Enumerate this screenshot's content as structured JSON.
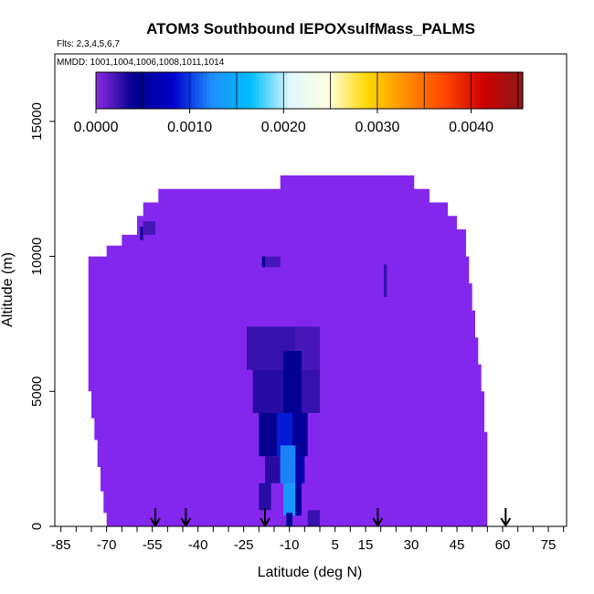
{
  "chart_data": {
    "type": "heatmap",
    "title": "ATOM3 Southbound IEPOXsulfMass_PALMS",
    "subtitle_flights": "Flts: 2,3,4,5,6,7",
    "subtitle_dates": "MMDD: 1001,1004,1006,1008,1011,1014",
    "xlabel": "Latitude (deg N)",
    "ylabel": "Altitude (m)",
    "xlim": [
      -87,
      81
    ],
    "ylim": [
      0,
      17500
    ],
    "x_tick_labels": [
      "-85",
      "-70",
      "-55",
      "-40",
      "-25",
      "-10",
      "5",
      "15",
      "30",
      "45",
      "60",
      "75"
    ],
    "y_tick_labels": [
      "0",
      "5000",
      "10000",
      "15000"
    ],
    "colorbar": {
      "range": [
        0,
        0.00455
      ],
      "tick_labels": [
        "0.0000",
        "0.0010",
        "0.0020",
        "0.0030",
        "0.0040"
      ],
      "colors": [
        "#8A2BE2",
        "#00008B",
        "#0000CD",
        "#1E90FF",
        "#00BFFF",
        "#E0F8FF",
        "#FFFFE0",
        "#FFD700",
        "#FF8C00",
        "#FF4500",
        "#CC0000",
        "#8B1A1A"
      ]
    },
    "background_value": 0.0001,
    "background_color": "#8427EE",
    "envelope": [
      [
        -70,
        0
      ],
      [
        -70,
        500
      ],
      [
        -71,
        500
      ],
      [
        -71,
        1300
      ],
      [
        -72,
        1300
      ],
      [
        -72,
        2200
      ],
      [
        -73,
        2200
      ],
      [
        -73,
        3200
      ],
      [
        -74,
        3200
      ],
      [
        -74,
        4000
      ],
      [
        -75,
        4000
      ],
      [
        -75,
        5000
      ],
      [
        -76,
        5000
      ],
      [
        -76,
        10000
      ],
      [
        -70,
        10000
      ],
      [
        -70,
        10400
      ],
      [
        -65,
        10400
      ],
      [
        -65,
        10800
      ],
      [
        -60,
        10800
      ],
      [
        -60,
        11500
      ],
      [
        -58,
        11500
      ],
      [
        -58,
        12000
      ],
      [
        -53,
        12000
      ],
      [
        -53,
        12500
      ],
      [
        -13,
        12500
      ],
      [
        -13,
        13000
      ],
      [
        31,
        13000
      ],
      [
        31,
        12500
      ],
      [
        36,
        12500
      ],
      [
        36,
        12000
      ],
      [
        42,
        12000
      ],
      [
        42,
        11500
      ],
      [
        45,
        11500
      ],
      [
        45,
        11000
      ],
      [
        48,
        11000
      ],
      [
        48,
        10000
      ],
      [
        49,
        10000
      ],
      [
        49,
        9000
      ],
      [
        50,
        9000
      ],
      [
        50,
        8000
      ],
      [
        51,
        8000
      ],
      [
        51,
        7000
      ],
      [
        52,
        7000
      ],
      [
        52,
        6000
      ],
      [
        53,
        6000
      ],
      [
        53,
        5000
      ],
      [
        54,
        5000
      ],
      [
        54,
        3500
      ],
      [
        55,
        3500
      ],
      [
        55,
        0
      ]
    ],
    "features": [
      {
        "x": [
          -59,
          -58
        ],
        "y": [
          10600,
          11100
        ],
        "value": 0.00035
      },
      {
        "x": [
          -58,
          -54
        ],
        "y": [
          10800,
          11300
        ],
        "value": 0.0002
      },
      {
        "x": [
          -19,
          -18
        ],
        "y": [
          9600,
          10000
        ],
        "value": 0.00045
      },
      {
        "x": [
          -18,
          -13
        ],
        "y": [
          9600,
          10000
        ],
        "value": 0.0002
      },
      {
        "x": [
          21,
          22
        ],
        "y": [
          8500,
          9700
        ],
        "value": 0.00025
      },
      {
        "x": [
          -24,
          -8
        ],
        "y": [
          5800,
          7400
        ],
        "value": 0.00025
      },
      {
        "x": [
          -8,
          0
        ],
        "y": [
          5800,
          7400
        ],
        "value": 0.0002
      },
      {
        "x": [
          -22,
          -12
        ],
        "y": [
          4200,
          5800
        ],
        "value": 0.0003
      },
      {
        "x": [
          -12,
          -6
        ],
        "y": [
          4200,
          6500
        ],
        "value": 0.00045
      },
      {
        "x": [
          -6,
          0
        ],
        "y": [
          4200,
          5800
        ],
        "value": 0.00025
      },
      {
        "x": [
          -20,
          -14
        ],
        "y": [
          2600,
          4200
        ],
        "value": 0.0004
      },
      {
        "x": [
          -14,
          -9
        ],
        "y": [
          2600,
          4200
        ],
        "value": 0.0009
      },
      {
        "x": [
          -9,
          -4
        ],
        "y": [
          2600,
          4200
        ],
        "value": 0.0005
      },
      {
        "x": [
          -18,
          -13
        ],
        "y": [
          1600,
          2600
        ],
        "value": 0.0003
      },
      {
        "x": [
          -13,
          -8
        ],
        "y": [
          1600,
          3000
        ],
        "value": 0.0012
      },
      {
        "x": [
          -8,
          -5
        ],
        "y": [
          1600,
          2600
        ],
        "value": 0.0006
      },
      {
        "x": [
          -12,
          -8
        ],
        "y": [
          400,
          1600
        ],
        "value": 0.0013
      },
      {
        "x": [
          -8,
          -6
        ],
        "y": [
          400,
          1600
        ],
        "value": 0.0005
      },
      {
        "x": [
          -20,
          -16
        ],
        "y": [
          600,
          1600
        ],
        "value": 0.0003
      },
      {
        "x": [
          -4,
          0
        ],
        "y": [
          0,
          600
        ],
        "value": 0.00025
      },
      {
        "x": [
          -11,
          -9
        ],
        "y": [
          0,
          500
        ],
        "value": 0.00045
      }
    ],
    "flight_markers_lat": [
      -54,
      -44,
      -18,
      19,
      61
    ]
  }
}
